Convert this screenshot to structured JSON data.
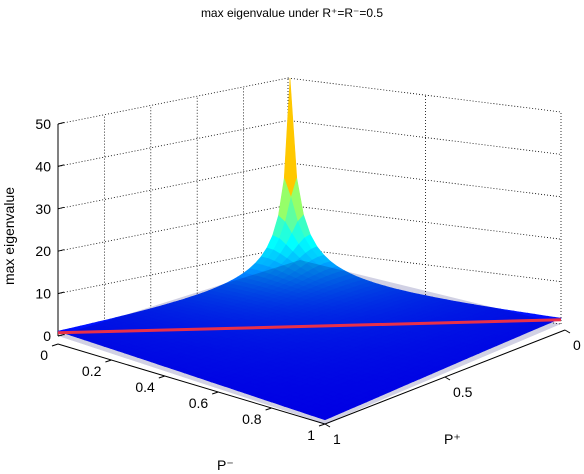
{
  "chart_data": {
    "type": "surface",
    "title": "max eigenvalue under R⁺=R⁻=0.5",
    "xlabel": "P⁻",
    "ylabel": "P⁺",
    "zlabel": "max eigenvalue",
    "x_ticks": [
      "0",
      "0.2",
      "0.4",
      "0.6",
      "0.8",
      "1"
    ],
    "y_ticks": [
      "0",
      "0.5",
      "1"
    ],
    "z_ticks": [
      "0",
      "10",
      "20",
      "30",
      "40",
      "50"
    ],
    "xlim": [
      0,
      1
    ],
    "ylim": [
      0,
      1
    ],
    "zlim": [
      0,
      50
    ],
    "grid": true,
    "colormap": "jet",
    "surface_samples": [
      {
        "p_minus": 0,
        "p_plus": 0,
        "value": 51
      },
      {
        "p_minus": 0,
        "p_plus": 1,
        "value": 1
      },
      {
        "p_minus": 1,
        "p_plus": 0,
        "value": 1
      },
      {
        "p_minus": 1,
        "p_plus": 1,
        "value": 1
      },
      {
        "p_minus": 0.1,
        "p_plus": 0.1,
        "value": 31
      },
      {
        "p_minus": 0.2,
        "p_plus": 0.2,
        "value": 22
      },
      {
        "p_minus": 0.4,
        "p_plus": 0.4,
        "value": 13
      },
      {
        "p_minus": 0.6,
        "p_plus": 0.6,
        "value": 7
      }
    ],
    "reference_line": {
      "value": 1,
      "color": "#e8304a"
    }
  }
}
